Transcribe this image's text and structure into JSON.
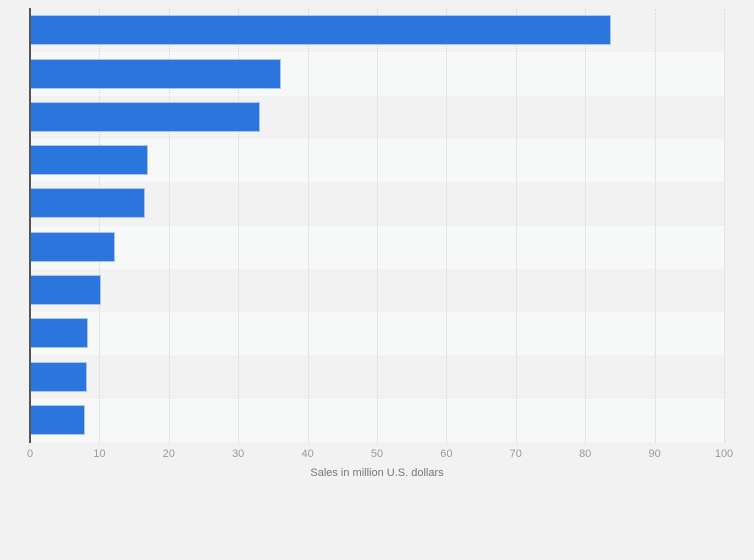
{
  "page": {
    "background_color": "#f2f2f2"
  },
  "chart_data": {
    "type": "bar",
    "orientation": "horizontal",
    "title": "",
    "xlabel": "Sales in million U.S. dollars",
    "ylabel": "",
    "categories": [
      "",
      "",
      "",
      "",
      "",
      "",
      "",
      "",
      "",
      ""
    ],
    "values": [
      83.7,
      36.2,
      33.1,
      17.0,
      16.6,
      12.3,
      10.2,
      8.4,
      8.2,
      7.9
    ],
    "xlim": [
      0,
      100
    ],
    "xticks": [
      0,
      10,
      20,
      30,
      40,
      50,
      60,
      70,
      80,
      90,
      100
    ],
    "grid": "vertical-dotted",
    "legend": "none",
    "bar_color": "#2b76dd",
    "bar_border_color": "#a9c6ee",
    "row_band_colors": [
      "#f2f2f2",
      "#f7f8f8"
    ],
    "axis_line_color": "#555555",
    "gridline_color": "#d4d4d4",
    "tick_label_color": "#9a9a9a",
    "axis_label_color": "#767676"
  }
}
